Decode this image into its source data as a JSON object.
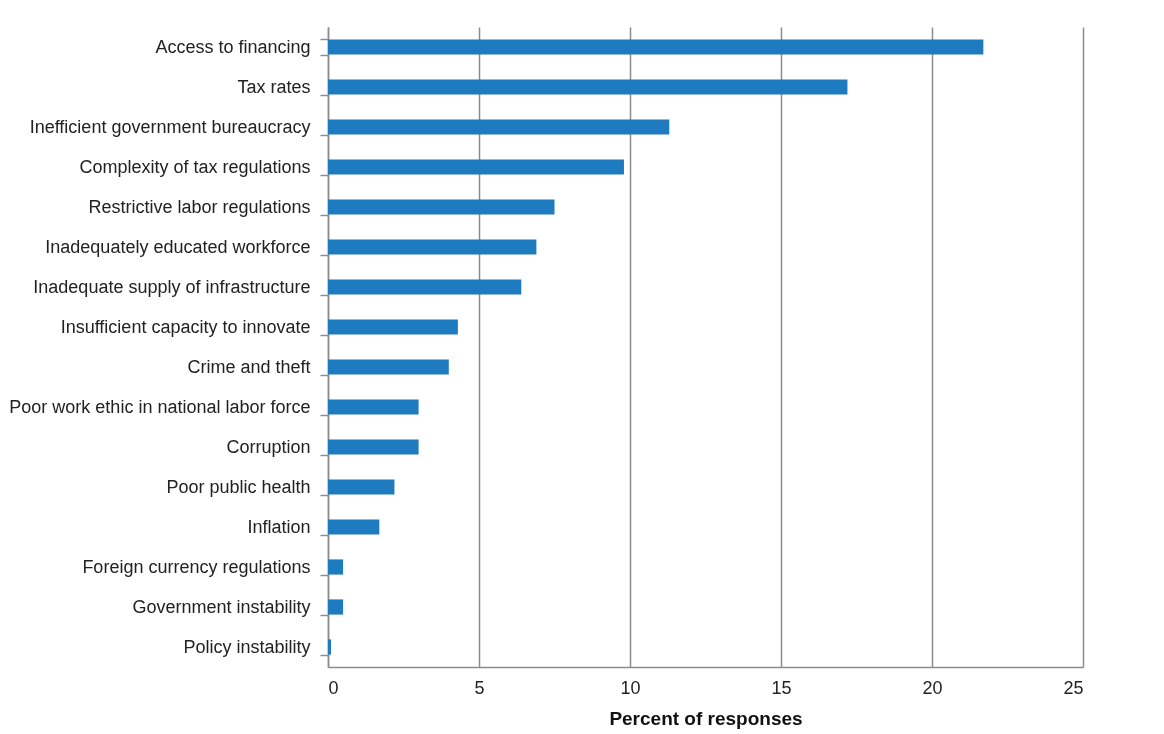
{
  "chart_data": {
    "type": "bar",
    "orientation": "horizontal",
    "xlabel": "Percent of responses",
    "categories": [
      "Access to financing",
      "Tax rates",
      "Inefficient government bureaucracy",
      "Complexity of tax regulations",
      "Restrictive labor regulations",
      "Inadequately educated workforce",
      "Inadequate supply of infrastructure",
      "Insufficient capacity to innovate",
      "Crime and theft",
      "Poor work ethic in national labor force",
      "Corruption",
      "Poor public health",
      "Inflation",
      "Foreign currency regulations",
      "Government instability",
      "Policy instability"
    ],
    "values": [
      21.7,
      17.2,
      11.3,
      9.8,
      7.5,
      6.9,
      6.4,
      4.3,
      4.0,
      3.0,
      3.0,
      2.2,
      1.7,
      0.5,
      0.5,
      0.1
    ],
    "color": "#1f7bbf",
    "xlim": [
      0,
      25
    ],
    "xticks": [
      0,
      5,
      10,
      15,
      20,
      25
    ],
    "grid": "x"
  }
}
